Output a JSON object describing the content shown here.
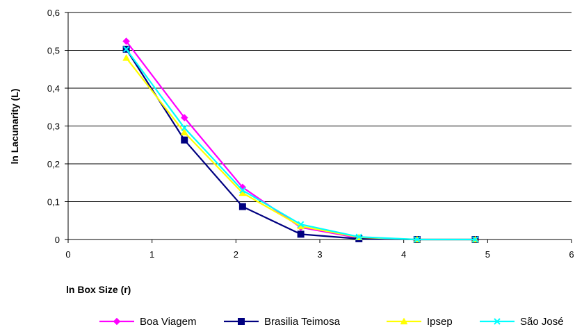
{
  "chart_data": {
    "type": "line",
    "xlabel": "ln Box Size (r)",
    "ylabel": "ln Lacunarity (L)",
    "xlim": [
      0,
      6
    ],
    "ylim": [
      0,
      0.6
    ],
    "x_ticks": [
      "0",
      "1",
      "2",
      "3",
      "4",
      "5",
      "6"
    ],
    "y_ticks": [
      "0",
      "0,1",
      "0,2",
      "0,3",
      "0,4",
      "0,5",
      "0,6"
    ],
    "grid": "horizontal",
    "legend_position": "bottom",
    "x": [
      0.693,
      1.386,
      2.079,
      2.773,
      3.466,
      4.159,
      4.852
    ],
    "series": [
      {
        "name": "Boa Viagem",
        "color": "#ff00ff",
        "marker": "diamond",
        "values": [
          0.524,
          0.322,
          0.138,
          0.032,
          0.004,
          0.0,
          0.0
        ]
      },
      {
        "name": "Brasilia Teimosa",
        "color": "#000080",
        "marker": "square",
        "values": [
          0.503,
          0.263,
          0.087,
          0.014,
          0.002,
          0.0,
          0.0
        ]
      },
      {
        "name": "Ipsep",
        "color": "#ffff00",
        "marker": "triangle",
        "values": [
          0.48,
          0.283,
          0.123,
          0.035,
          0.006,
          0.0,
          0.0
        ]
      },
      {
        "name": "São José",
        "color": "#00ffff",
        "marker": "x",
        "values": [
          0.503,
          0.295,
          0.13,
          0.04,
          0.007,
          0.0,
          0.0
        ]
      }
    ]
  }
}
